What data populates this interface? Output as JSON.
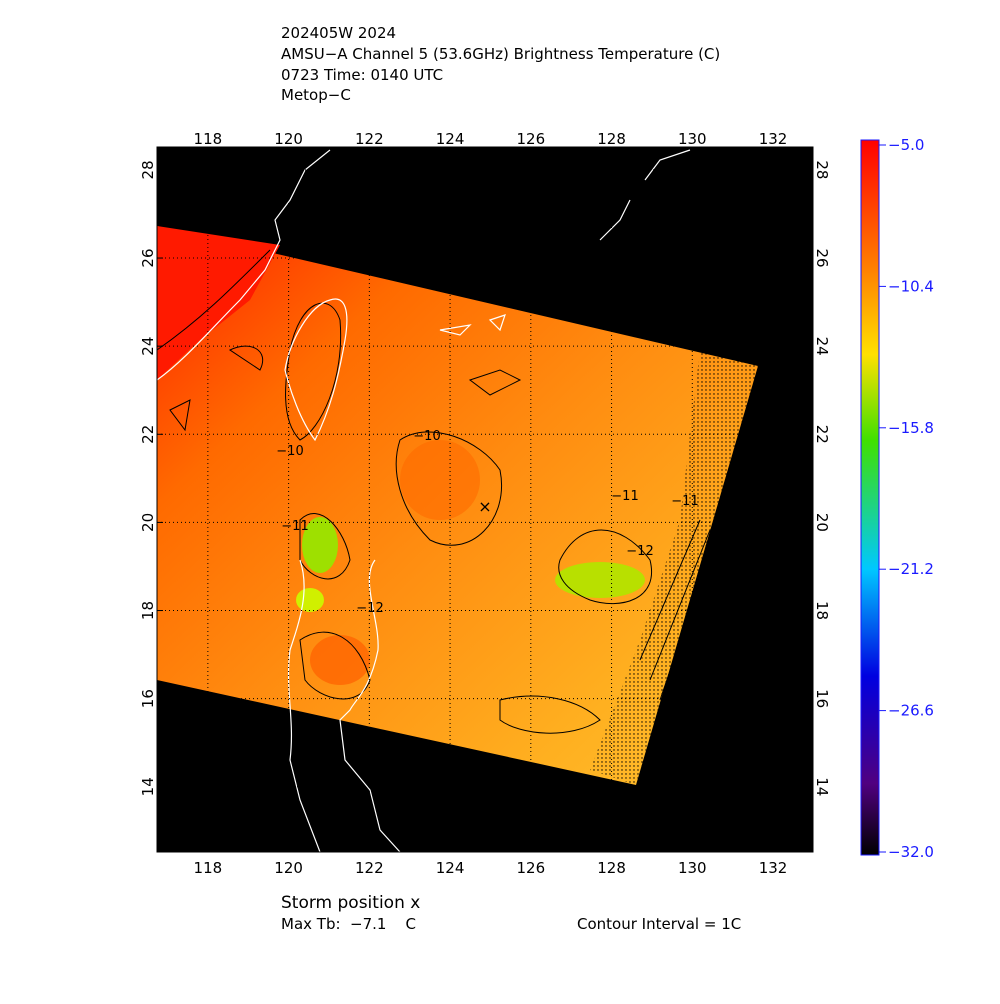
{
  "header": {
    "lines": [
      "202405W 2024",
      "AMSU−A Channel 5 (53.6GHz) Brightness Temperature (C)",
      "0723 Time: 0140 UTC",
      "Metop−C"
    ]
  },
  "map": {
    "lon_range": [
      116.74,
      132.99
    ],
    "lat_range": [
      12.52,
      28.52
    ],
    "lon_ticks": [
      118,
      120,
      122,
      124,
      126,
      128,
      130,
      132
    ],
    "lat_ticks": [
      14,
      16,
      18,
      20,
      22,
      24,
      26,
      28
    ],
    "contour_labels": [
      "−10",
      "−10",
      "−11",
      "−11",
      "−12",
      "−12",
      "−11"
    ]
  },
  "colorbar": {
    "range": [
      -32,
      -5
    ],
    "ticks": [
      {
        "value": -5,
        "label": "−5.0"
      },
      {
        "value": -10.4,
        "label": "−10.4"
      },
      {
        "value": -15.8,
        "label": "−15.8"
      },
      {
        "value": -21.2,
        "label": "−21.2"
      },
      {
        "value": -26.6,
        "label": "−26.6"
      },
      {
        "value": -32,
        "label": "−32.0"
      }
    ]
  },
  "footer": {
    "storm": "Storm position x",
    "max_tb": "Max Tb:  −7.1    C",
    "contour": "Contour Interval = 1C"
  }
}
